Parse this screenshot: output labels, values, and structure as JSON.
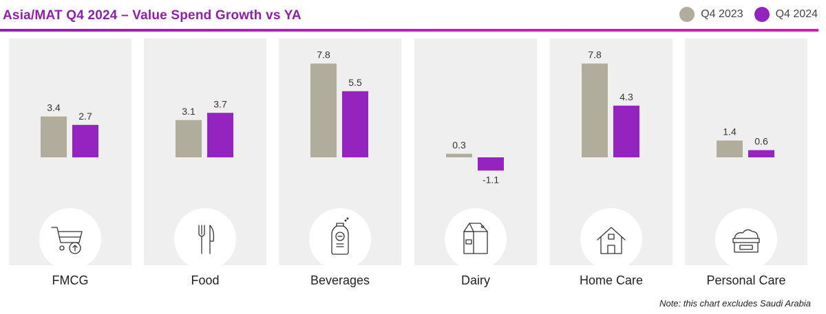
{
  "header": {
    "title": "Asia/MAT Q4 2024 – Value Spend Growth vs YA"
  },
  "legend": {
    "items": [
      {
        "label": "Q4 2023",
        "color": "#b0ad9d"
      },
      {
        "label": "Q4 2024",
        "color": "#9523c0"
      }
    ]
  },
  "chart_data": {
    "type": "bar",
    "title": "Asia/MAT Q4 2024 – Value Spend Growth vs YA",
    "categories": [
      "FMCG",
      "Food",
      "Beverages",
      "Dairy",
      "Home Care",
      "Personal Care"
    ],
    "series": [
      {
        "name": "Q4 2023",
        "color": "#b0ad9d",
        "values": [
          3.4,
          3.1,
          7.8,
          0.3,
          7.8,
          1.4
        ]
      },
      {
        "name": "Q4 2024",
        "color": "#9523c0",
        "values": [
          2.7,
          3.7,
          5.5,
          -1.1,
          4.3,
          0.6
        ]
      }
    ],
    "value_labels": {
      "Q4 2023": [
        "3.4",
        "3.1",
        "7.8",
        "0.3",
        "7.8",
        "1.4"
      ],
      "Q4 2024": [
        "2.7",
        "3.7",
        "5.5",
        "-1.1",
        "4.3",
        "0.6"
      ]
    },
    "icons": [
      "shopping-cart-icon",
      "fork-knife-icon",
      "bottle-icon",
      "milk-carton-icon",
      "house-icon",
      "cream-jar-icon"
    ],
    "legend_position": "top-right",
    "grid": false
  },
  "footer": {
    "note": "Note: this chart excludes Saudi Arabia"
  }
}
